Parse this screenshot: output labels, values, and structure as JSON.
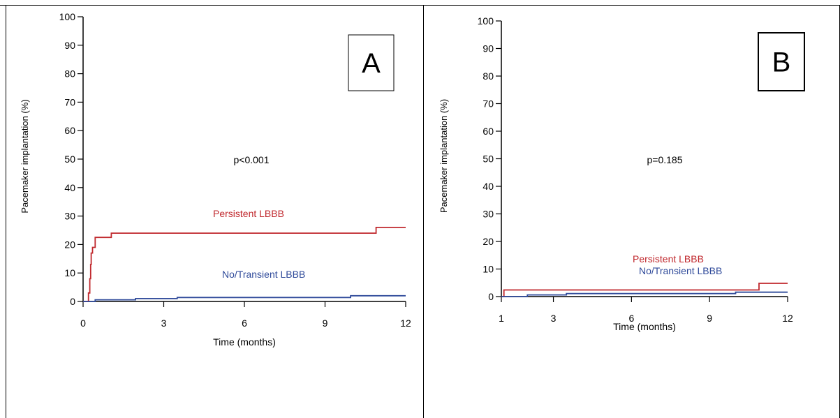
{
  "chart_data": [
    {
      "type": "line",
      "panel_label": "A",
      "xlabel": "Time (months)",
      "ylabel": "Pacemaker implantation (%)",
      "xlim": [
        0,
        12
      ],
      "ylim": [
        0,
        100
      ],
      "xticks": [
        0,
        3,
        6,
        9,
        12
      ],
      "yticks": [
        0,
        10,
        20,
        30,
        40,
        50,
        60,
        70,
        80,
        90,
        100
      ],
      "annotation": "p<0.001",
      "series": [
        {
          "name": "Persistent LBBB",
          "color": "#c0282d",
          "steps": [
            [
              0,
              0
            ],
            [
              0.2,
              0
            ],
            [
              0.2,
              3
            ],
            [
              0.25,
              3
            ],
            [
              0.25,
              8
            ],
            [
              0.28,
              8
            ],
            [
              0.28,
              13
            ],
            [
              0.3,
              13
            ],
            [
              0.3,
              17
            ],
            [
              0.35,
              17
            ],
            [
              0.35,
              19
            ],
            [
              0.45,
              19
            ],
            [
              0.45,
              22.5
            ],
            [
              1.05,
              22.5
            ],
            [
              1.05,
              24
            ],
            [
              10.9,
              24
            ],
            [
              10.9,
              26
            ],
            [
              12,
              26
            ]
          ]
        },
        {
          "name": "No/Transient LBBB",
          "color": "#2f4a9a",
          "steps": [
            [
              0,
              0
            ],
            [
              0.45,
              0
            ],
            [
              0.45,
              0.6
            ],
            [
              1.95,
              0.6
            ],
            [
              1.95,
              1
            ],
            [
              3.5,
              1
            ],
            [
              3.5,
              1.4
            ],
            [
              9.95,
              1.4
            ],
            [
              9.95,
              2
            ],
            [
              12,
              2
            ]
          ]
        }
      ]
    },
    {
      "type": "line",
      "panel_label": "B",
      "xlabel": "Time (months)",
      "ylabel": "Pacemaker implantation (%)",
      "xlim": [
        1,
        12
      ],
      "ylim": [
        0,
        100
      ],
      "xticks": [
        1,
        3,
        6,
        9,
        12
      ],
      "yticks": [
        0,
        10,
        20,
        30,
        40,
        50,
        60,
        70,
        80,
        90,
        100
      ],
      "annotation": "p=0.185",
      "series": [
        {
          "name": "Persistent LBBB",
          "color": "#c0282d",
          "steps": [
            [
              1,
              0
            ],
            [
              1.1,
              0
            ],
            [
              1.1,
              2.4
            ],
            [
              10.9,
              2.4
            ],
            [
              10.9,
              4.8
            ],
            [
              12,
              4.8
            ]
          ]
        },
        {
          "name": "No/Transient LBBB",
          "color": "#2f4a9a",
          "steps": [
            [
              1,
              0
            ],
            [
              2,
              0
            ],
            [
              2,
              0.6
            ],
            [
              3.5,
              0.6
            ],
            [
              3.5,
              1.1
            ],
            [
              10,
              1.1
            ],
            [
              10,
              1.6
            ],
            [
              12,
              1.6
            ]
          ]
        }
      ]
    }
  ]
}
